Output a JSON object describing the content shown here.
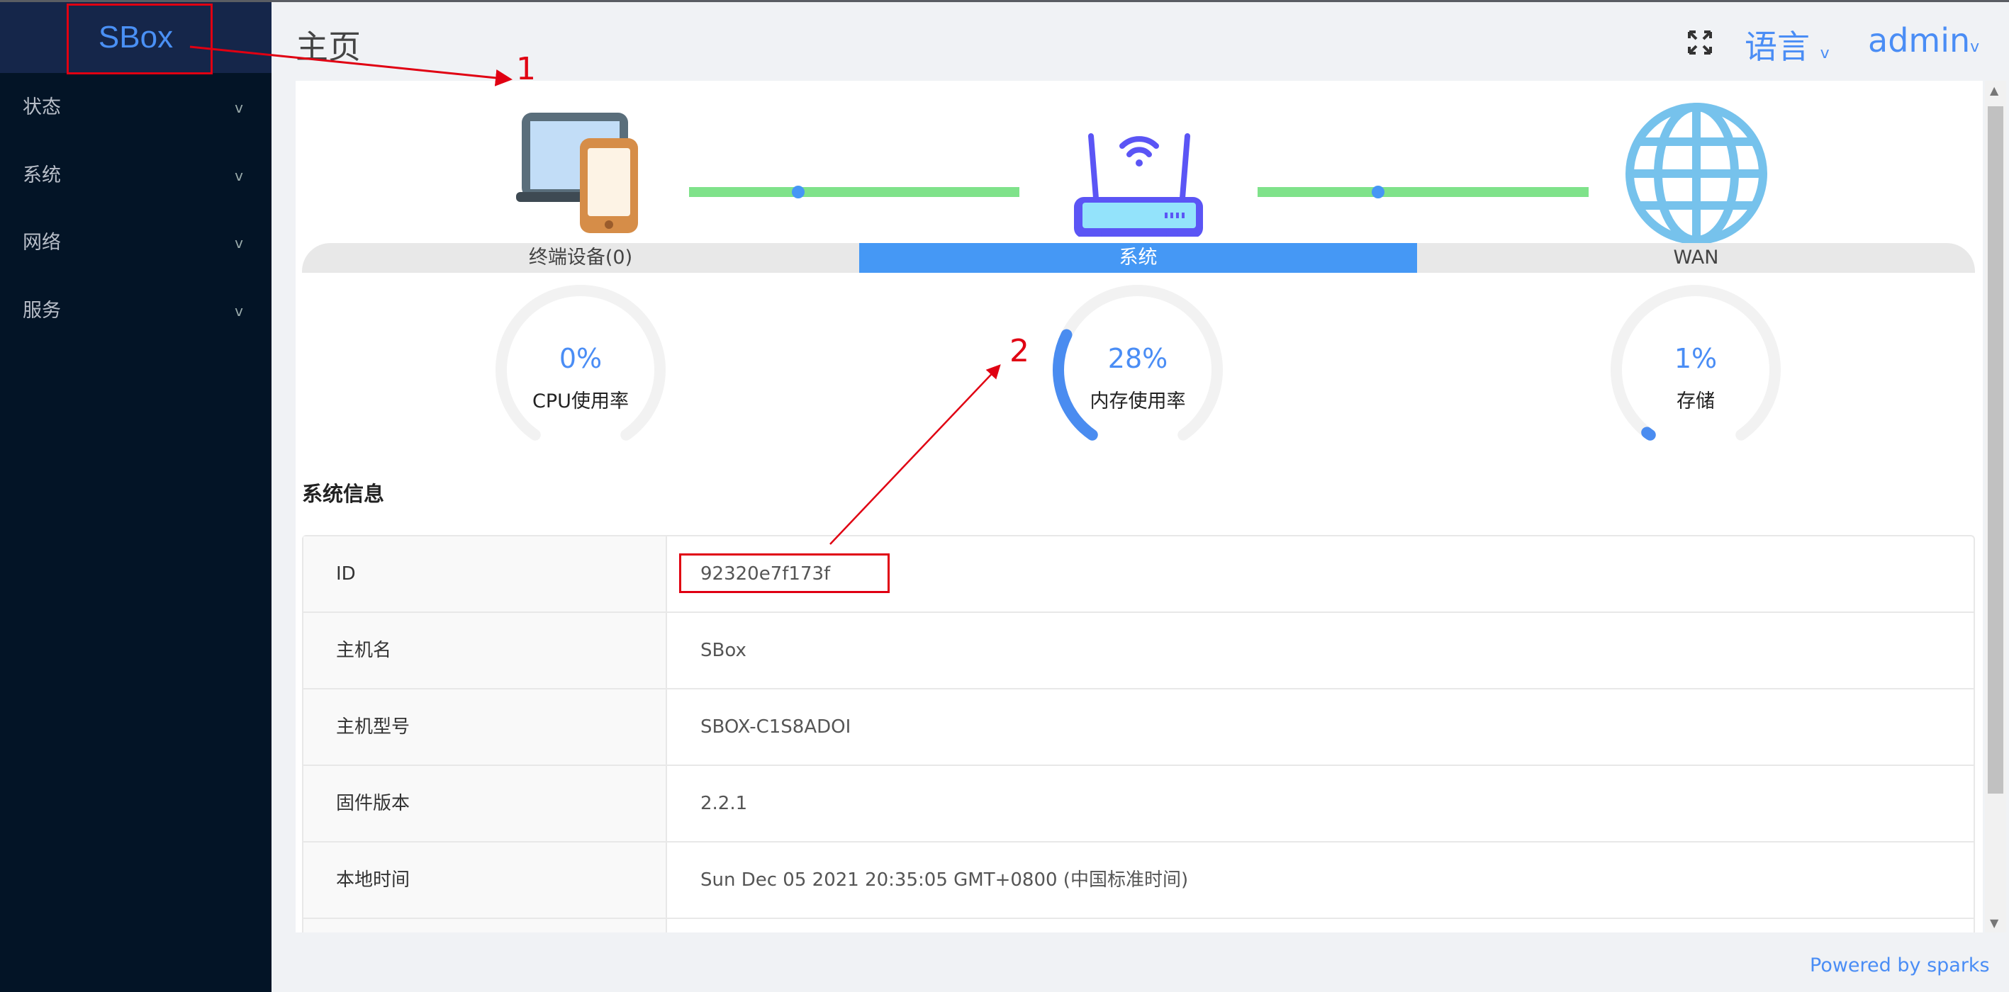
{
  "sidebar": {
    "logo": "SBox",
    "items": [
      {
        "label": "状态"
      },
      {
        "label": "系统"
      },
      {
        "label": "网络"
      },
      {
        "label": "服务"
      }
    ],
    "chevron": "v"
  },
  "header": {
    "title": "主页",
    "language": "语言",
    "user": "admin",
    "chevron": "v",
    "fullscreen_icon": "fullscreen-icon"
  },
  "topology": {
    "tabs": [
      {
        "label": "终端设备(0)",
        "active": false
      },
      {
        "label": "系统",
        "active": true
      },
      {
        "label": "WAN",
        "active": false
      }
    ],
    "icons": [
      "devices-icon",
      "router-icon",
      "globe-icon"
    ]
  },
  "gauges": [
    {
      "value": "0%",
      "percent": 0,
      "label": "CPU使用率"
    },
    {
      "value": "28%",
      "percent": 28,
      "label": "内存使用率"
    },
    {
      "value": "1%",
      "percent": 1,
      "label": "存储"
    }
  ],
  "system_info": {
    "title": "系统信息",
    "rows": [
      {
        "key": "ID",
        "value": "92320e7f173f"
      },
      {
        "key": "主机名",
        "value": "SBox"
      },
      {
        "key": "主机型号",
        "value": "SBOX-C1S8ADOI"
      },
      {
        "key": "固件版本",
        "value": "2.2.1"
      },
      {
        "key": "本地时间",
        "value": "Sun Dec 05 2021 20:35:05 GMT+0800 (中国标准时间)"
      }
    ]
  },
  "footer": "Powered by sparks",
  "annotations": {
    "one": "1",
    "two": "2"
  },
  "colors": {
    "accent": "#4598f5",
    "sidebar": "#031426",
    "annotation": "#e00012",
    "link_line": "#7fe28a"
  }
}
